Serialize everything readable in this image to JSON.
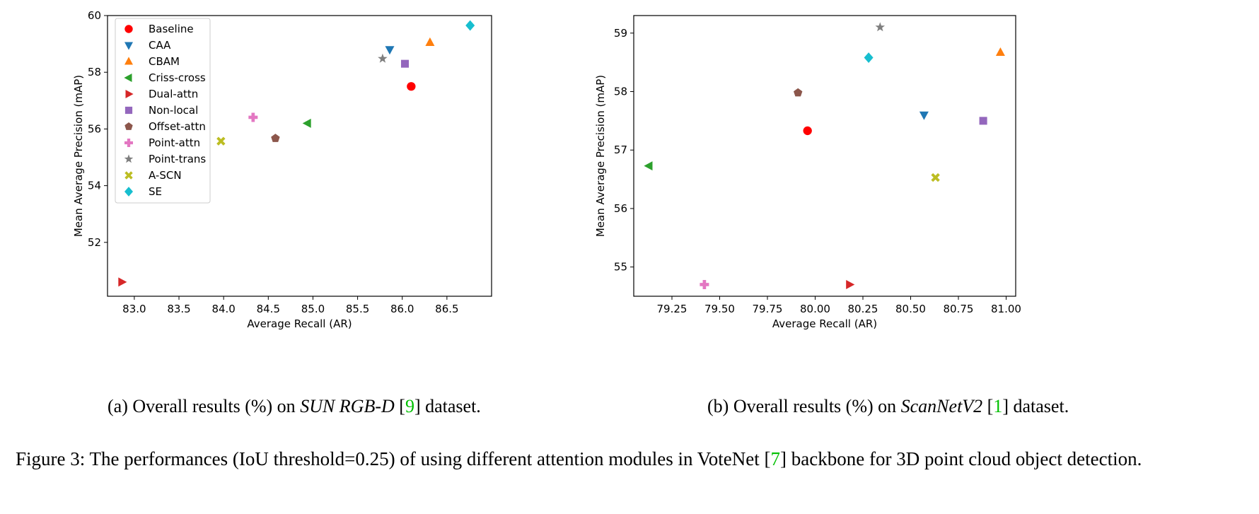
{
  "series_styles": [
    {
      "name": "Baseline",
      "marker": "circle",
      "color": "#ff0000"
    },
    {
      "name": "CAA",
      "marker": "triangle-down",
      "color": "#1f77b4"
    },
    {
      "name": "CBAM",
      "marker": "triangle-up",
      "color": "#ff7f0e"
    },
    {
      "name": "Criss-cross",
      "marker": "triangle-left",
      "color": "#2ca02c"
    },
    {
      "name": "Dual-attn",
      "marker": "triangle-right",
      "color": "#d62728"
    },
    {
      "name": "Non-local",
      "marker": "square",
      "color": "#9467bd"
    },
    {
      "name": "Offset-attn",
      "marker": "pentagon",
      "color": "#8c564b"
    },
    {
      "name": "Point-attn",
      "marker": "plus",
      "color": "#e377c2"
    },
    {
      "name": "Point-trans",
      "marker": "star",
      "color": "#7f7f7f"
    },
    {
      "name": "A-SCN",
      "marker": "x",
      "color": "#bcbd22"
    },
    {
      "name": "SE",
      "marker": "diamond",
      "color": "#17becf"
    }
  ],
  "chart_data": [
    {
      "type": "scatter",
      "title": "",
      "xlabel": "Average Recall (AR)",
      "ylabel": "Mean Average Precision (mAP)",
      "xlim": [
        82.7,
        87.0
      ],
      "ylim": [
        50.1,
        60.0
      ],
      "xticks": [
        83.0,
        83.5,
        84.0,
        84.5,
        85.0,
        85.5,
        86.0,
        86.5
      ],
      "xtick_labels": [
        "83.0",
        "83.5",
        "84.0",
        "84.5",
        "85.0",
        "85.5",
        "86.0",
        "86.5"
      ],
      "yticks": [
        52,
        54,
        56,
        58,
        60
      ],
      "ytick_labels": [
        "52",
        "54",
        "56",
        "58",
        "60"
      ],
      "legend": "top-left",
      "points": [
        {
          "name": "Baseline",
          "x": 86.1,
          "y": 57.5
        },
        {
          "name": "CAA",
          "x": 85.86,
          "y": 58.8
        },
        {
          "name": "CBAM",
          "x": 86.31,
          "y": 59.05
        },
        {
          "name": "Criss-cross",
          "x": 84.94,
          "y": 56.2
        },
        {
          "name": "Dual-attn",
          "x": 82.86,
          "y": 50.6
        },
        {
          "name": "Non-local",
          "x": 86.03,
          "y": 58.3
        },
        {
          "name": "Offset-attn",
          "x": 84.58,
          "y": 55.67
        },
        {
          "name": "Point-attn",
          "x": 84.33,
          "y": 56.41
        },
        {
          "name": "Point-trans",
          "x": 85.78,
          "y": 58.48
        },
        {
          "name": "A-SCN",
          "x": 83.97,
          "y": 55.57
        },
        {
          "name": "SE",
          "x": 86.76,
          "y": 59.65
        }
      ]
    },
    {
      "type": "scatter",
      "title": "",
      "xlabel": "Average Recall (AR)",
      "ylabel": "Mean Average Precision (mAP)",
      "xlim": [
        79.05,
        81.05
      ],
      "ylim": [
        54.5,
        59.3
      ],
      "xticks": [
        79.25,
        79.5,
        79.75,
        80.0,
        80.25,
        80.5,
        80.75,
        81.0
      ],
      "xtick_labels": [
        "79.25",
        "79.50",
        "79.75",
        "80.00",
        "80.25",
        "80.50",
        "80.75",
        "81.00"
      ],
      "yticks": [
        55,
        56,
        57,
        58,
        59
      ],
      "ytick_labels": [
        "55",
        "56",
        "57",
        "58",
        "59"
      ],
      "legend": "none",
      "points": [
        {
          "name": "Baseline",
          "x": 79.96,
          "y": 57.33
        },
        {
          "name": "CAA",
          "x": 80.57,
          "y": 57.6
        },
        {
          "name": "CBAM",
          "x": 80.97,
          "y": 58.67
        },
        {
          "name": "Criss-cross",
          "x": 79.13,
          "y": 56.73
        },
        {
          "name": "Dual-attn",
          "x": 80.18,
          "y": 54.7
        },
        {
          "name": "Non-local",
          "x": 80.88,
          "y": 57.5
        },
        {
          "name": "Offset-attn",
          "x": 79.91,
          "y": 57.98
        },
        {
          "name": "Point-attn",
          "x": 79.42,
          "y": 54.7
        },
        {
          "name": "Point-trans",
          "x": 80.34,
          "y": 59.1
        },
        {
          "name": "A-SCN",
          "x": 80.63,
          "y": 56.53
        },
        {
          "name": "SE",
          "x": 80.28,
          "y": 58.58
        }
      ]
    }
  ],
  "captions": {
    "sub_a": {
      "prefix": "(a) Overall results (%) on ",
      "dataset": "SUN RGB-D",
      "ref_open": " [",
      "ref": "9",
      "ref_close": "] dataset."
    },
    "sub_b": {
      "prefix": "(b) Overall results (%) on ",
      "dataset": "ScanNetV2",
      "ref_open": " [",
      "ref": "1",
      "ref_close": "] dataset."
    },
    "main": {
      "part1": "Figure 3: The performances (IoU threshold=0.25) of using different attention modules in VoteNet [",
      "ref": "7",
      "part2": "] backbone for 3D point cloud object detection."
    }
  }
}
